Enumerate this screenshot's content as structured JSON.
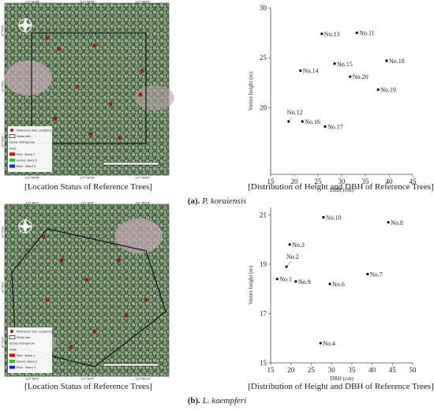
{
  "chart_data": [
    {
      "type": "scatter",
      "xlabel": "DBH (cm)",
      "ylabel": "Vertex height (m)",
      "x": [
        25.8,
        33.2,
        39.5,
        28.5,
        21.3,
        31.8,
        37.7,
        18.8,
        21.7,
        26.5
      ],
      "y": [
        27.4,
        27.5,
        24.7,
        24.4,
        23.7,
        23.1,
        21.8,
        18.6,
        18.6,
        18.1
      ],
      "labels": [
        "No.13",
        "No.11",
        "No.18",
        "No.15",
        "No.14",
        "No.20",
        "No.19",
        "No.12",
        "No.16",
        "No.17"
      ],
      "xlim": [
        15,
        45
      ],
      "xticks": [
        15,
        20,
        25,
        30,
        35,
        40,
        45
      ],
      "ylim": [
        13.3,
        30
      ],
      "yticks": [
        20,
        25,
        30
      ],
      "color": "#000000"
    },
    {
      "type": "scatter",
      "xlabel": "DBH (cm)",
      "ylabel": "Vertex height (m)",
      "x": [
        28.0,
        44.0,
        19.7,
        18.9,
        38.9,
        16.6,
        21.2,
        29.6,
        27.3
      ],
      "y": [
        20.9,
        20.7,
        19.8,
        18.9,
        18.6,
        18.4,
        18.3,
        18.2,
        15.8
      ],
      "labels": [
        "No.10",
        "No.8",
        "No.3",
        "No.2",
        "No.7",
        "No.1",
        "No.9",
        "No.6",
        "No.4"
      ],
      "xlim": [
        15,
        50
      ],
      "xticks": [
        15,
        20,
        25,
        30,
        35,
        40,
        45,
        50
      ],
      "ylim": [
        15,
        21.3
      ],
      "yticks": [
        15,
        17,
        19,
        21
      ],
      "color": "#000000"
    }
  ],
  "panels": [
    {
      "label": "(a).",
      "species": "P. koraiensis",
      "map_caption": "[Location Status of Reference Trees]",
      "chart_caption": "[Distribution of Height and DBH of Reference Trees]",
      "map": {
        "top_ticks": [
          "127°48'48\"",
          "127°48'50\"",
          "127°48'52\""
        ],
        "bottom_ticks": [
          "127°48'48\"",
          "127°48'50\"",
          "127°48'52\""
        ],
        "left_ticks": [
          "37°4'54\"",
          "37°4'52\"",
          "37°4'50\""
        ]
      }
    },
    {
      "label": "(b).",
      "species": "L. kaempferi",
      "map_caption": "[Location Status of Reference Trees]",
      "chart_caption": "[Distribution of Height and DBH of Reference Trees]",
      "map": {
        "top_ticks": [
          "127°50'0\"",
          "127°50'5\"",
          "127°50'10\""
        ],
        "bottom_ticks": [
          "127°50'0\"",
          "127°50'5\"",
          "127°50'10\""
        ],
        "left_ticks": [
          "37°4'20\"",
          "37°4'15\"",
          "37°4'10\""
        ]
      }
    }
  ],
  "legend": [
    "Reference tree Locations",
    "Study site",
    "Drone Orthophoto",
    "RGB",
    "Red : Band 1",
    "Green: Band 2",
    "Blue : Band 3"
  ]
}
